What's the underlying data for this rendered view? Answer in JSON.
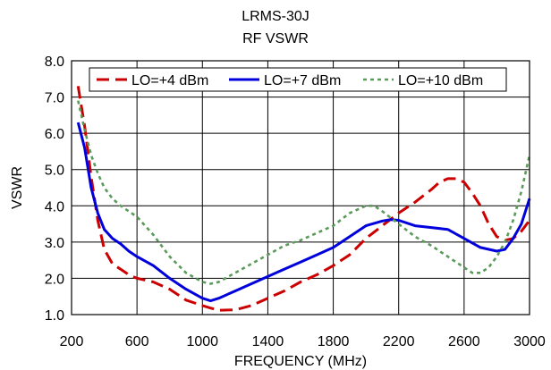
{
  "chart_data": {
    "type": "line",
    "title": "LRMS-30J",
    "subtitle": "RF VSWR",
    "xlabel": "FREQUENCY (MHz)",
    "ylabel": "VSWR",
    "xlim": [
      200,
      3000
    ],
    "ylim": [
      1.0,
      8.0
    ],
    "xticks": [
      "200",
      "600",
      "1000",
      "1400",
      "1800",
      "2200",
      "2600",
      "3000"
    ],
    "yticks": [
      "1.0",
      "2.0",
      "3.0",
      "4.0",
      "5.0",
      "6.0",
      "7.0",
      "8.0"
    ],
    "grid": true,
    "legend_position": "top",
    "series": [
      {
        "name": "LO=+4 dBm",
        "color": "#cc0000",
        "style": "dashed",
        "x": [
          240,
          280,
          320,
          360,
          400,
          450,
          500,
          550,
          600,
          700,
          800,
          900,
          1000,
          1050,
          1100,
          1200,
          1300,
          1400,
          1500,
          1600,
          1700,
          1800,
          1900,
          2000,
          2100,
          2200,
          2300,
          2400,
          2450,
          2500,
          2550,
          2600,
          2650,
          2700,
          2750,
          2800,
          2850,
          2900,
          2950,
          3000
        ],
        "y": [
          7.3,
          6.2,
          4.8,
          3.6,
          2.8,
          2.4,
          2.25,
          2.1,
          2.0,
          1.9,
          1.7,
          1.4,
          1.25,
          1.18,
          1.12,
          1.13,
          1.25,
          1.45,
          1.65,
          1.9,
          2.1,
          2.35,
          2.65,
          3.1,
          3.45,
          3.8,
          4.1,
          4.45,
          4.65,
          4.75,
          4.75,
          4.65,
          4.35,
          4.0,
          3.5,
          3.15,
          3.05,
          3.1,
          3.3,
          3.6
        ]
      },
      {
        "name": "LO=+7 dBm",
        "color": "#0000dd",
        "style": "solid",
        "x": [
          240,
          280,
          320,
          360,
          400,
          450,
          500,
          550,
          600,
          700,
          800,
          900,
          1000,
          1050,
          1100,
          1200,
          1300,
          1400,
          1500,
          1600,
          1700,
          1800,
          1900,
          2000,
          2100,
          2150,
          2200,
          2300,
          2400,
          2500,
          2600,
          2700,
          2800,
          2850,
          2900,
          2950,
          3000
        ],
        "y": [
          6.3,
          5.6,
          4.5,
          3.8,
          3.35,
          3.1,
          2.95,
          2.75,
          2.6,
          2.35,
          2.0,
          1.7,
          1.45,
          1.38,
          1.45,
          1.65,
          1.85,
          2.05,
          2.25,
          2.45,
          2.65,
          2.85,
          3.15,
          3.45,
          3.58,
          3.62,
          3.6,
          3.45,
          3.4,
          3.35,
          3.1,
          2.85,
          2.75,
          2.8,
          3.1,
          3.5,
          4.2
        ]
      },
      {
        "name": "LO=+10 dBm",
        "color": "#5a9a5a",
        "style": "dotted",
        "x": [
          240,
          280,
          320,
          360,
          400,
          450,
          500,
          550,
          600,
          700,
          800,
          900,
          1000,
          1050,
          1100,
          1200,
          1300,
          1400,
          1500,
          1600,
          1700,
          1800,
          1900,
          2000,
          2050,
          2100,
          2200,
          2300,
          2400,
          2500,
          2600,
          2650,
          2700,
          2750,
          2800,
          2850,
          2900,
          2950,
          3000
        ],
        "y": [
          6.9,
          6.1,
          5.4,
          4.9,
          4.5,
          4.2,
          4.0,
          3.85,
          3.7,
          3.2,
          2.6,
          2.15,
          1.9,
          1.85,
          1.9,
          2.15,
          2.4,
          2.65,
          2.9,
          3.05,
          3.25,
          3.45,
          3.8,
          4.0,
          4.0,
          3.85,
          3.5,
          3.15,
          2.9,
          2.6,
          2.3,
          2.15,
          2.15,
          2.3,
          2.6,
          3.0,
          3.6,
          4.4,
          5.4
        ]
      }
    ]
  }
}
